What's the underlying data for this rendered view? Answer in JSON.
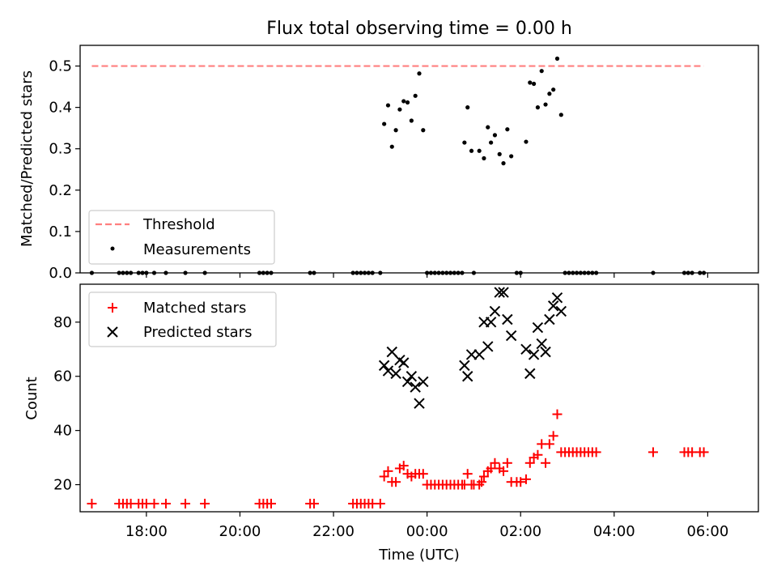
{
  "colors": {
    "threshold": "#ff7f7f",
    "measurements": "#000000",
    "matched": "#ff0000",
    "predicted": "#000000",
    "axes": "#000000",
    "background": "#ffffff"
  },
  "shared_x": {
    "label": "Time (UTC)",
    "range": [
      "16:35",
      "07:05"
    ],
    "ticks": [
      {
        "time": "18:00",
        "label": "18:00"
      },
      {
        "time": "20:00",
        "label": "20:00"
      },
      {
        "time": "22:00",
        "label": "22:00"
      },
      {
        "time": "00:00",
        "label": "00:00"
      },
      {
        "time": "02:00",
        "label": "02:00"
      },
      {
        "time": "04:00",
        "label": "04:00"
      },
      {
        "time": "06:00",
        "label": "06:00"
      }
    ]
  },
  "chart_data": [
    {
      "type": "scatter",
      "title": "Flux total observing time = 0.00 h",
      "ylabel": "Matched/Predicted stars",
      "xlabel": "",
      "ylim": [
        0,
        0.55
      ],
      "yticks": [
        0.0,
        0.1,
        0.2,
        0.3,
        0.4,
        0.5
      ],
      "ytick_labels": [
        "0.0",
        "0.1",
        "0.2",
        "0.3",
        "0.4",
        "0.5"
      ],
      "legend_position": "lower-left",
      "series": [
        {
          "name": "Threshold",
          "kind": "dashed-line",
          "color": "#ff7f7f",
          "points": [
            [
              "16:50",
              0.5
            ],
            [
              "05:55",
              0.5
            ]
          ]
        },
        {
          "name": "Measurements",
          "kind": "dot",
          "color": "#000000",
          "points": [
            [
              "16:50",
              0.0
            ],
            [
              "17:25",
              0.0
            ],
            [
              "17:30",
              0.0
            ],
            [
              "17:35",
              0.0
            ],
            [
              "17:40",
              0.0
            ],
            [
              "17:50",
              0.0
            ],
            [
              "17:55",
              0.0
            ],
            [
              "18:00",
              0.0
            ],
            [
              "18:10",
              0.0
            ],
            [
              "18:25",
              0.0
            ],
            [
              "18:50",
              0.0
            ],
            [
              "19:15",
              0.0
            ],
            [
              "20:25",
              0.0
            ],
            [
              "20:30",
              0.0
            ],
            [
              "20:35",
              0.0
            ],
            [
              "20:40",
              0.0
            ],
            [
              "21:30",
              0.0
            ],
            [
              "21:35",
              0.0
            ],
            [
              "22:25",
              0.0
            ],
            [
              "22:30",
              0.0
            ],
            [
              "22:35",
              0.0
            ],
            [
              "22:40",
              0.0
            ],
            [
              "22:45",
              0.0
            ],
            [
              "22:50",
              0.0
            ],
            [
              "23:00",
              0.0
            ],
            [
              "23:05",
              0.36
            ],
            [
              "23:10",
              0.405
            ],
            [
              "23:15",
              0.305
            ],
            [
              "23:20",
              0.345
            ],
            [
              "23:25",
              0.395
            ],
            [
              "23:30",
              0.415
            ],
            [
              "23:35",
              0.412
            ],
            [
              "23:40",
              0.368
            ],
            [
              "23:45",
              0.428
            ],
            [
              "23:50",
              0.482
            ],
            [
              "23:55",
              0.345
            ],
            [
              "00:00",
              0.0
            ],
            [
              "00:05",
              0.0
            ],
            [
              "00:10",
              0.0
            ],
            [
              "00:15",
              0.0
            ],
            [
              "00:20",
              0.0
            ],
            [
              "00:25",
              0.0
            ],
            [
              "00:30",
              0.0
            ],
            [
              "00:35",
              0.0
            ],
            [
              "00:40",
              0.0
            ],
            [
              "00:45",
              0.0
            ],
            [
              "00:48",
              0.315
            ],
            [
              "00:52",
              0.4
            ],
            [
              "00:57",
              0.295
            ],
            [
              "01:00",
              0.0
            ],
            [
              "01:07",
              0.295
            ],
            [
              "01:13",
              0.277
            ],
            [
              "01:18",
              0.352
            ],
            [
              "01:22",
              0.315
            ],
            [
              "01:27",
              0.333
            ],
            [
              "01:33",
              0.287
            ],
            [
              "01:38",
              0.265
            ],
            [
              "01:43",
              0.347
            ],
            [
              "01:48",
              0.282
            ],
            [
              "01:55",
              0.0
            ],
            [
              "02:00",
              0.0
            ],
            [
              "02:07",
              0.317
            ],
            [
              "02:12",
              0.46
            ],
            [
              "02:17",
              0.457
            ],
            [
              "02:22",
              0.4
            ],
            [
              "02:27",
              0.488
            ],
            [
              "02:32",
              0.407
            ],
            [
              "02:37",
              0.433
            ],
            [
              "02:42",
              0.443
            ],
            [
              "02:47",
              0.518
            ],
            [
              "02:52",
              0.382
            ],
            [
              "02:57",
              0.0
            ],
            [
              "03:02",
              0.0
            ],
            [
              "03:07",
              0.0
            ],
            [
              "03:12",
              0.0
            ],
            [
              "03:17",
              0.0
            ],
            [
              "03:22",
              0.0
            ],
            [
              "03:27",
              0.0
            ],
            [
              "03:32",
              0.0
            ],
            [
              "03:37",
              0.0
            ],
            [
              "04:50",
              0.0
            ],
            [
              "05:30",
              0.0
            ],
            [
              "05:35",
              0.0
            ],
            [
              "05:40",
              0.0
            ],
            [
              "05:50",
              0.0
            ],
            [
              "05:55",
              0.0
            ]
          ]
        }
      ]
    },
    {
      "type": "scatter",
      "title": "",
      "ylabel": "Count",
      "xlabel": "Time (UTC)",
      "ylim": [
        10,
        94
      ],
      "yticks": [
        20,
        40,
        60,
        80
      ],
      "ytick_labels": [
        "20",
        "40",
        "60",
        "80"
      ],
      "legend_position": "upper-left",
      "series": [
        {
          "name": "Matched stars",
          "kind": "plus",
          "color": "#ff0000",
          "points": [
            [
              "16:50",
              13
            ],
            [
              "17:25",
              13
            ],
            [
              "17:30",
              13
            ],
            [
              "17:35",
              13
            ],
            [
              "17:40",
              13
            ],
            [
              "17:50",
              13
            ],
            [
              "17:55",
              13
            ],
            [
              "18:00",
              13
            ],
            [
              "18:10",
              13
            ],
            [
              "18:25",
              13
            ],
            [
              "18:50",
              13
            ],
            [
              "19:15",
              13
            ],
            [
              "20:25",
              13
            ],
            [
              "20:30",
              13
            ],
            [
              "20:35",
              13
            ],
            [
              "20:40",
              13
            ],
            [
              "21:30",
              13
            ],
            [
              "21:35",
              13
            ],
            [
              "22:25",
              13
            ],
            [
              "22:30",
              13
            ],
            [
              "22:35",
              13
            ],
            [
              "22:40",
              13
            ],
            [
              "22:45",
              13
            ],
            [
              "22:50",
              13
            ],
            [
              "23:00",
              13
            ],
            [
              "23:05",
              23
            ],
            [
              "23:10",
              25
            ],
            [
              "23:15",
              21
            ],
            [
              "23:20",
              21
            ],
            [
              "23:25",
              26
            ],
            [
              "23:30",
              27
            ],
            [
              "23:35",
              24
            ],
            [
              "23:40",
              23
            ],
            [
              "23:45",
              24
            ],
            [
              "23:50",
              24
            ],
            [
              "23:55",
              24
            ],
            [
              "00:00",
              20
            ],
            [
              "00:05",
              20
            ],
            [
              "00:10",
              20
            ],
            [
              "00:15",
              20
            ],
            [
              "00:20",
              20
            ],
            [
              "00:25",
              20
            ],
            [
              "00:30",
              20
            ],
            [
              "00:35",
              20
            ],
            [
              "00:40",
              20
            ],
            [
              "00:45",
              20
            ],
            [
              "00:48",
              20
            ],
            [
              "00:52",
              24
            ],
            [
              "00:57",
              20
            ],
            [
              "01:00",
              20
            ],
            [
              "01:07",
              20
            ],
            [
              "01:10",
              21
            ],
            [
              "01:13",
              23
            ],
            [
              "01:18",
              25
            ],
            [
              "01:22",
              26
            ],
            [
              "01:27",
              28
            ],
            [
              "01:33",
              26
            ],
            [
              "01:38",
              25
            ],
            [
              "01:43",
              28
            ],
            [
              "01:48",
              21
            ],
            [
              "01:55",
              21
            ],
            [
              "02:00",
              21
            ],
            [
              "02:07",
              22
            ],
            [
              "02:12",
              28
            ],
            [
              "02:17",
              30
            ],
            [
              "02:22",
              31
            ],
            [
              "02:27",
              35
            ],
            [
              "02:32",
              28
            ],
            [
              "02:37",
              35
            ],
            [
              "02:42",
              38
            ],
            [
              "02:47",
              46
            ],
            [
              "02:52",
              32
            ],
            [
              "02:57",
              32
            ],
            [
              "03:02",
              32
            ],
            [
              "03:07",
              32
            ],
            [
              "03:12",
              32
            ],
            [
              "03:17",
              32
            ],
            [
              "03:22",
              32
            ],
            [
              "03:27",
              32
            ],
            [
              "03:32",
              32
            ],
            [
              "03:37",
              32
            ],
            [
              "04:50",
              32
            ],
            [
              "05:30",
              32
            ],
            [
              "05:35",
              32
            ],
            [
              "05:40",
              32
            ],
            [
              "05:50",
              32
            ],
            [
              "05:55",
              32
            ]
          ]
        },
        {
          "name": "Predicted stars",
          "kind": "x",
          "color": "#000000",
          "points": [
            [
              "23:05",
              64
            ],
            [
              "23:10",
              62
            ],
            [
              "23:15",
              69
            ],
            [
              "23:20",
              61
            ],
            [
              "23:25",
              66
            ],
            [
              "23:30",
              65
            ],
            [
              "23:35",
              58
            ],
            [
              "23:40",
              60
            ],
            [
              "23:45",
              56
            ],
            [
              "23:50",
              50
            ],
            [
              "23:55",
              58
            ],
            [
              "00:48",
              64
            ],
            [
              "00:52",
              60
            ],
            [
              "00:57",
              68
            ],
            [
              "01:07",
              68
            ],
            [
              "01:13",
              80
            ],
            [
              "01:18",
              71
            ],
            [
              "01:22",
              80
            ],
            [
              "01:27",
              84
            ],
            [
              "01:33",
              91
            ],
            [
              "01:38",
              91
            ],
            [
              "01:43",
              81
            ],
            [
              "01:48",
              75
            ],
            [
              "02:07",
              70
            ],
            [
              "02:12",
              61
            ],
            [
              "02:17",
              68
            ],
            [
              "02:22",
              78
            ],
            [
              "02:27",
              72
            ],
            [
              "02:32",
              69
            ],
            [
              "02:37",
              81
            ],
            [
              "02:42",
              86
            ],
            [
              "02:47",
              89
            ],
            [
              "02:52",
              84
            ]
          ]
        }
      ]
    }
  ]
}
